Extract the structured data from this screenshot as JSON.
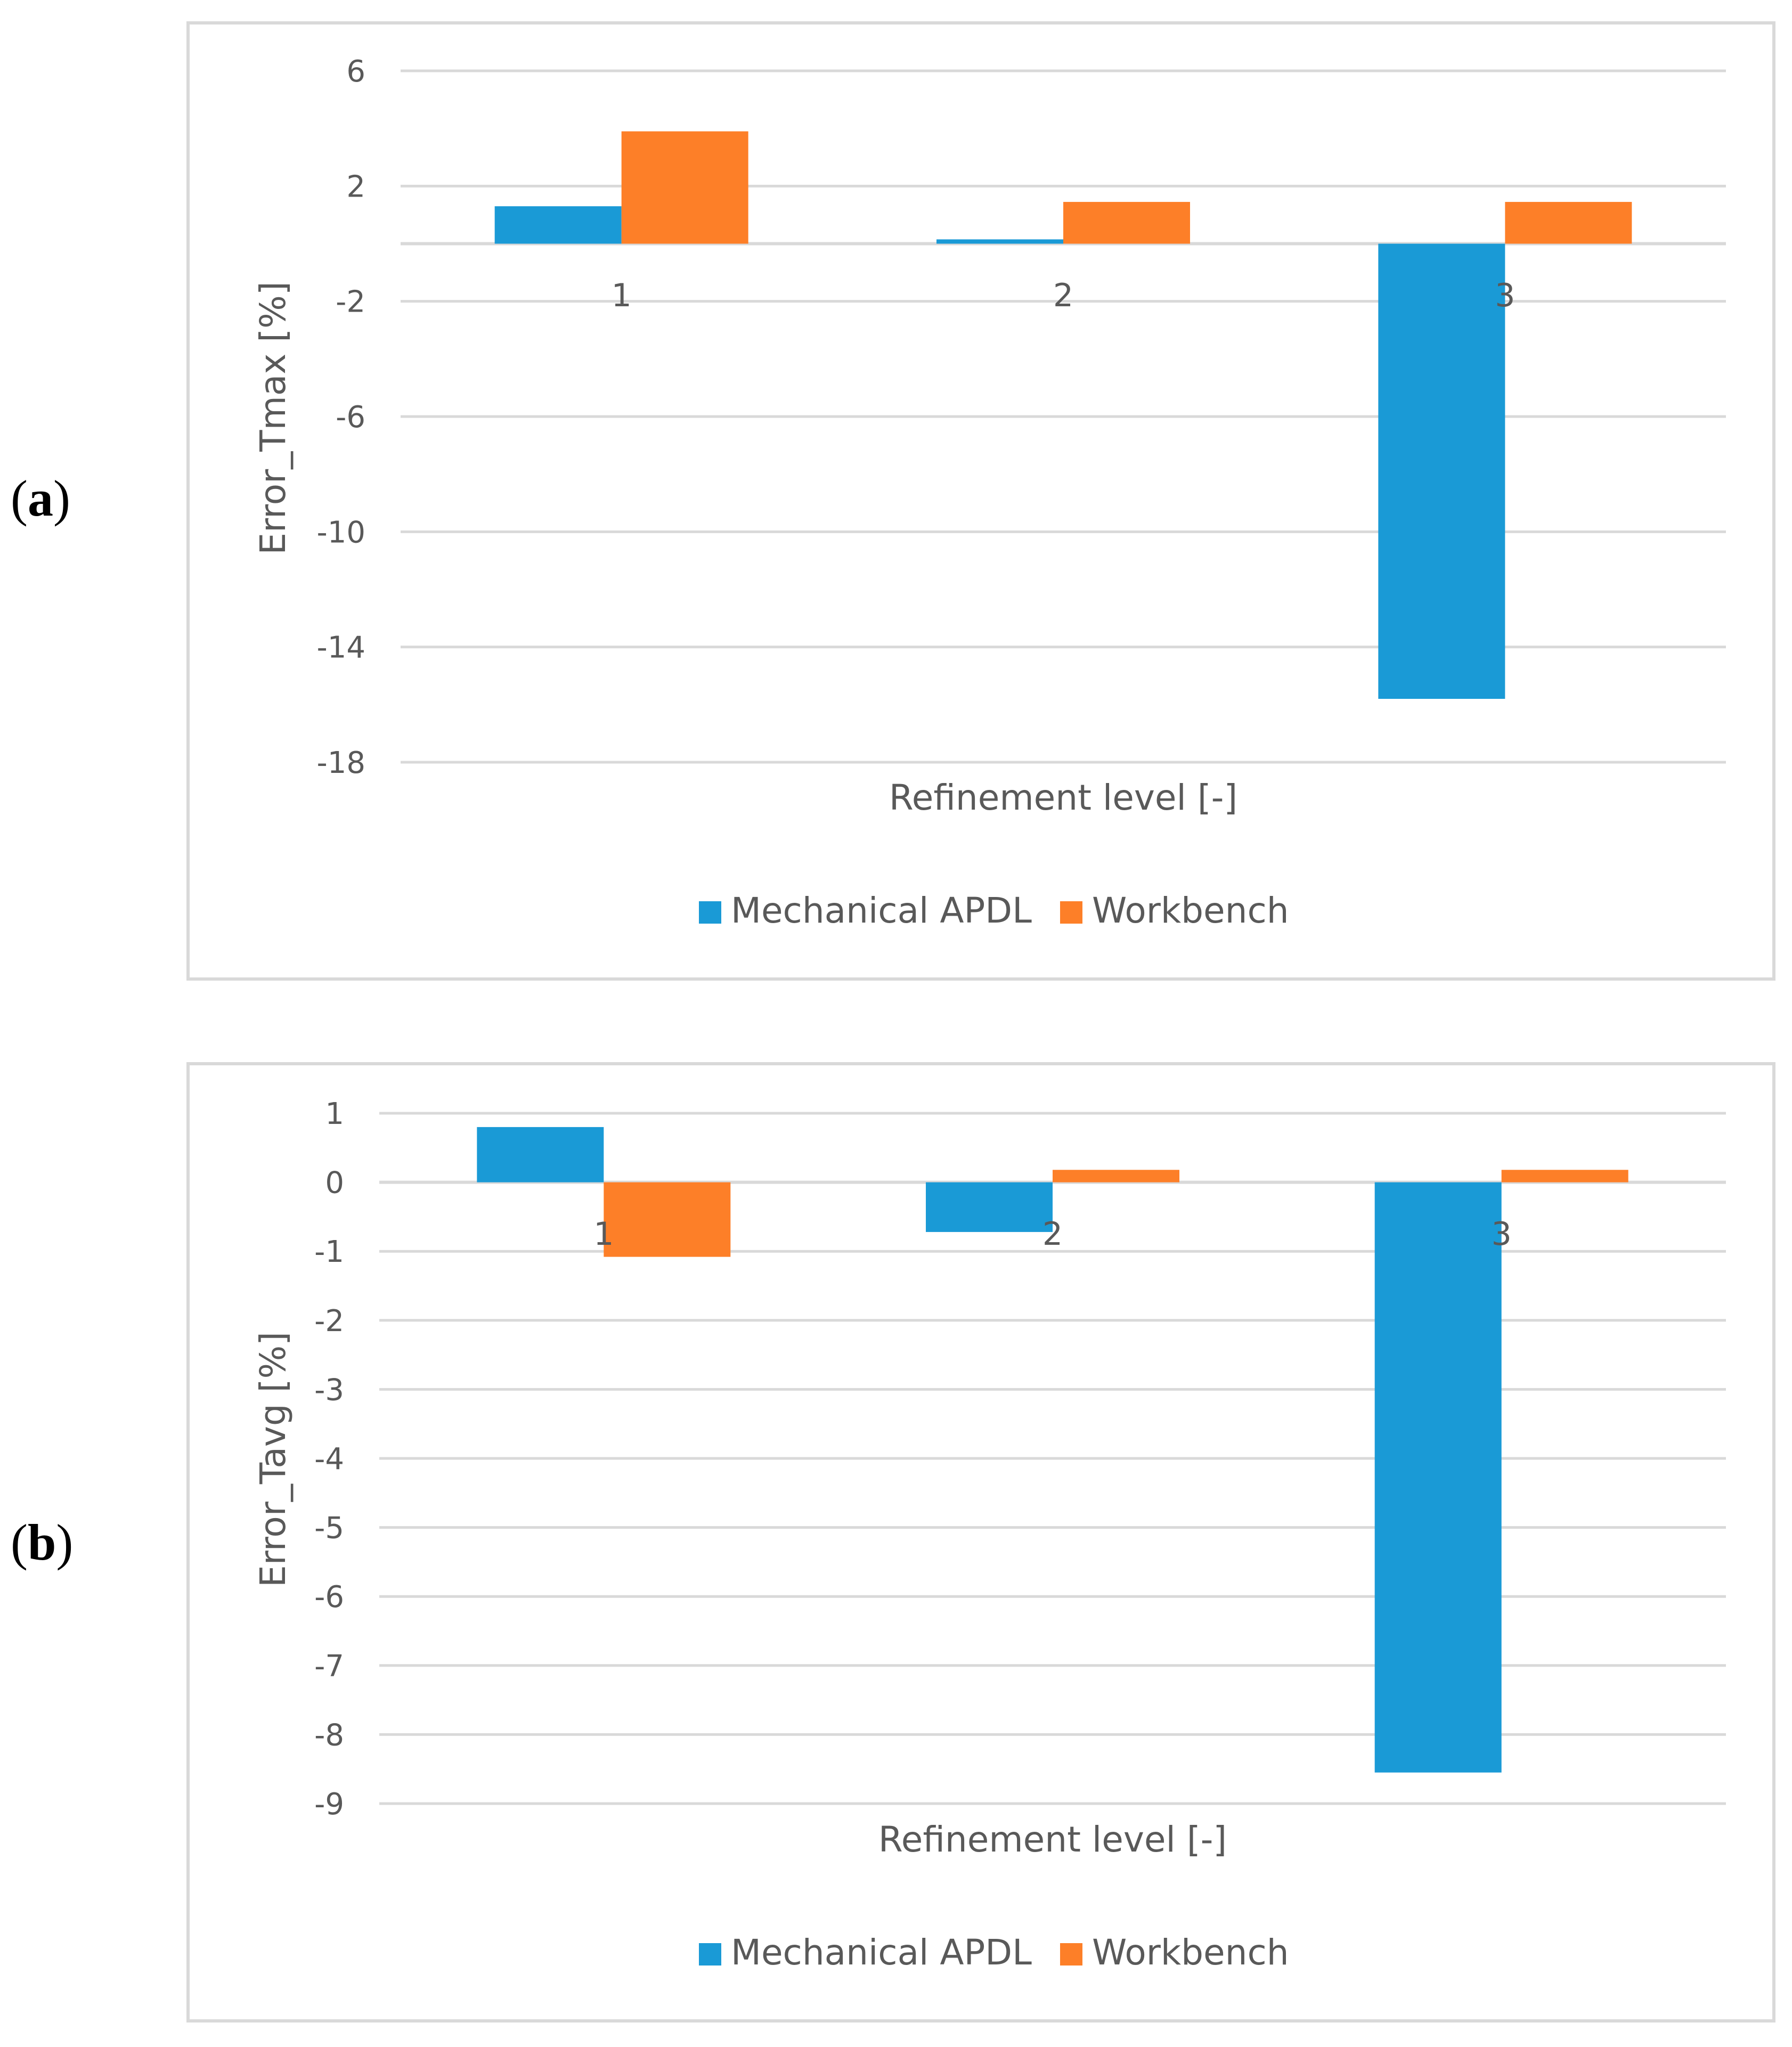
{
  "panels": [
    {
      "label": "a"
    },
    {
      "label": "b"
    }
  ],
  "chart_data": [
    {
      "type": "bar",
      "title": "",
      "xlabel": "Refinement level [-]",
      "ylabel": "Error_Tmax [%]",
      "categories": [
        "1",
        "2",
        "3"
      ],
      "series": [
        {
          "name": "Mechanical APDL",
          "color": "#1a9ad6",
          "values": [
            1.3,
            0.15,
            -15.8
          ]
        },
        {
          "name": "Workbench",
          "color": "#fd7f28",
          "values": [
            3.9,
            1.45,
            1.45
          ]
        }
      ],
      "ylim": [
        -18,
        6
      ],
      "yticks": [
        6,
        2,
        -2,
        -6,
        -10,
        -14,
        -18
      ],
      "ytick_labels": [
        "6",
        "2",
        "-2",
        "-6",
        "-10",
        "-14",
        "-18"
      ],
      "grid": true,
      "legend_position": "bottom"
    },
    {
      "type": "bar",
      "title": "",
      "xlabel": "Refinement level  [-]",
      "ylabel": "Error_Tavg [%]",
      "categories": [
        "1",
        "2",
        "3"
      ],
      "series": [
        {
          "name": "Mechanical APDL",
          "color": "#1a9ad6",
          "values": [
            0.8,
            -0.72,
            -8.55
          ]
        },
        {
          "name": "Workbench",
          "color": "#fd7f28",
          "values": [
            -1.08,
            0.18,
            0.18
          ]
        }
      ],
      "ylim": [
        -9,
        1
      ],
      "yticks": [
        1,
        0,
        -1,
        -2,
        -3,
        -4,
        -5,
        -6,
        -7,
        -8,
        -9
      ],
      "ytick_labels": [
        "1",
        "0",
        "-1",
        "-2",
        "-3",
        "-4",
        "-5",
        "-6",
        "-7",
        "-8",
        "-9"
      ],
      "grid": true,
      "legend_position": "bottom"
    }
  ]
}
